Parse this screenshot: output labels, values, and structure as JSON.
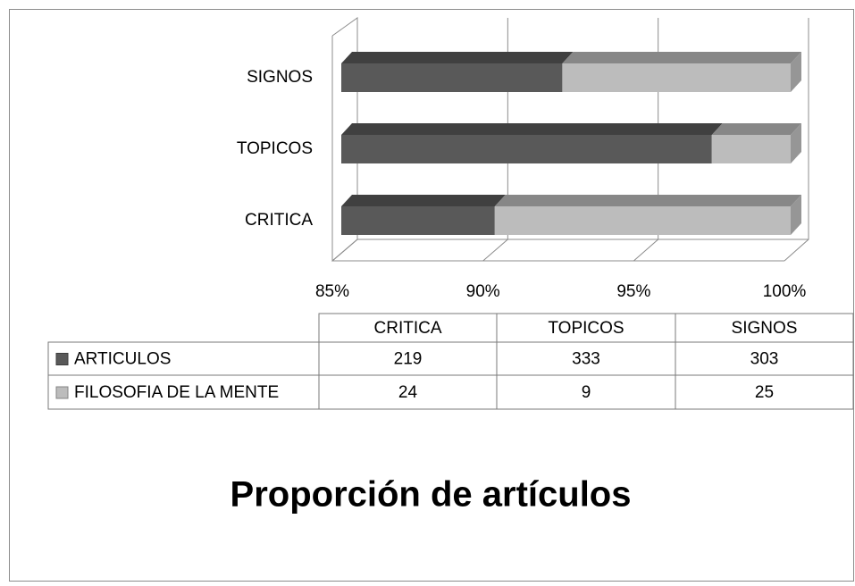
{
  "chart_data": {
    "type": "bar",
    "orientation": "horizontal",
    "stacking": "percent",
    "title": "Proporción de artículos",
    "categories": [
      "CRITICA",
      "TOPICOS",
      "SIGNOS"
    ],
    "series": [
      {
        "name": "ARTICULOS",
        "color": "#595959",
        "values": [
          219,
          333,
          303
        ]
      },
      {
        "name": "FILOSOFIA DE LA MENTE",
        "color": "#bcbcbc",
        "values": [
          24,
          9,
          25
        ]
      }
    ],
    "xlim": [
      85,
      100
    ],
    "xticks": [
      {
        "value": 85,
        "label": "85%"
      },
      {
        "value": 90,
        "label": "90%"
      },
      {
        "value": 95,
        "label": "95%"
      },
      {
        "value": 100,
        "label": "100%"
      }
    ],
    "grid": true,
    "data_table": true
  }
}
